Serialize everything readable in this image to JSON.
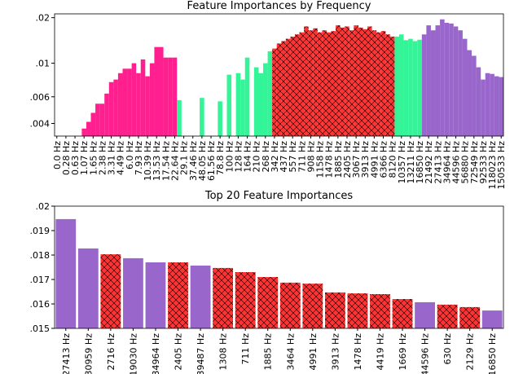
{
  "chart_data": [
    {
      "type": "bar",
      "title": "Feature Importances by Frequency",
      "log_scale": true,
      "categories": [
        "0.0 Hz",
        null,
        "0.28 Hz",
        null,
        "0.63 Hz",
        null,
        "1.07 Hz",
        null,
        "1.65 Hz",
        null,
        "2.38 Hz",
        null,
        "3.31 Hz",
        null,
        "4.49 Hz",
        null,
        "6.0 Hz",
        null,
        "7.93 Hz",
        null,
        "10.39 Hz",
        null,
        "13.53 Hz",
        null,
        "17.54 Hz",
        null,
        "22.64 Hz",
        null,
        "29.1 Hz",
        null,
        "37.46 Hz",
        null,
        "48.05 Hz",
        null,
        "61.56 Hz",
        null,
        "78.8 Hz",
        null,
        "100 Hz",
        null,
        "128 Hz",
        null,
        "164 Hz",
        null,
        "210 Hz",
        null,
        "268 Hz",
        null,
        "342 Hz",
        null,
        "437 Hz",
        null,
        "557 Hz",
        null,
        "711 Hz",
        null,
        "908 Hz",
        null,
        "1158 Hz",
        null,
        "1478 Hz",
        null,
        "1885 Hz",
        null,
        "2405 Hz",
        null,
        "3067 Hz",
        null,
        "3913 Hz",
        null,
        "4991 Hz",
        null,
        "6366 Hz",
        null,
        "8120 Hz",
        null,
        "10357 Hz",
        null,
        "13211 Hz",
        null,
        "16850 Hz",
        null,
        "21492 Hz",
        null,
        "27413 Hz",
        null,
        "34964 Hz",
        null,
        "44596 Hz",
        null,
        "56880 Hz",
        null,
        "72549 Hz",
        null,
        "92533 Hz",
        null,
        "118023 Hz",
        null,
        "150533 Hz"
      ],
      "values": [
        0.003,
        0.003,
        0.003,
        0.003,
        0.003,
        0.003,
        0.0037,
        0.0041,
        0.0047,
        0.0054,
        0.0054,
        0.0063,
        0.0075,
        0.0078,
        0.0086,
        0.0092,
        0.0092,
        0.01,
        0.0086,
        0.0106,
        0.0082,
        0.01,
        0.0128,
        0.0128,
        0.0109,
        0.0109,
        0.0109,
        0.0057,
        0.003,
        0.003,
        0.003,
        0.003,
        0.0059,
        0.003,
        0.003,
        0.003,
        0.0056,
        0.003,
        0.0084,
        0.003,
        0.0086,
        0.0078,
        0.0109,
        0.003,
        0.0094,
        0.0086,
        0.01,
        0.012,
        0.0125,
        0.0135,
        0.014,
        0.0145,
        0.015,
        0.0155,
        0.016,
        0.0175,
        0.0165,
        0.017,
        0.016,
        0.0165,
        0.016,
        0.0163,
        0.0178,
        0.0172,
        0.0175,
        0.0165,
        0.0178,
        0.0172,
        0.0168,
        0.0175,
        0.0165,
        0.016,
        0.0163,
        0.0155,
        0.015,
        0.015,
        0.0155,
        0.0142,
        0.0145,
        0.014,
        0.0143,
        0.0155,
        0.0178,
        0.0165,
        0.0178,
        0.0195,
        0.0185,
        0.0183,
        0.0175,
        0.0165,
        0.0145,
        0.0122,
        0.0112,
        0.0094,
        0.0078,
        0.0086,
        0.0085,
        0.0082,
        0.0081
      ],
      "colors": [
        "#ff1f8e",
        "#ff1f8e",
        "#ff1f8e",
        "#ff1f8e",
        "#ff1f8e",
        "#ff1f8e",
        "#ff1f8e",
        "#ff1f8e",
        "#ff1f8e",
        "#ff1f8e",
        "#ff1f8e",
        "#ff1f8e",
        "#ff1f8e",
        "#ff1f8e",
        "#ff1f8e",
        "#ff1f8e",
        "#ff1f8e",
        "#ff1f8e",
        "#ff1f8e",
        "#ff1f8e",
        "#ff1f8e",
        "#ff1f8e",
        "#ff1f8e",
        "#ff1f8e",
        "#ff1f8e",
        "#ff1f8e",
        "#ff1f8e",
        "#33f598",
        "#33f598",
        "#33f598",
        "#33f598",
        "#33f598",
        "#33f598",
        "#33f598",
        "#33f598",
        "#33f598",
        "#33f598",
        "#33f598",
        "#33f598",
        "#33f598",
        "#33f598",
        "#33f598",
        "#33f598",
        "#33f598",
        "#33f598",
        "#33f598",
        "#33f598",
        "#33f598",
        "#ff3333",
        "#ff3333",
        "#ff3333",
        "#ff3333",
        "#ff3333",
        "#ff3333",
        "#ff3333",
        "#ff3333",
        "#ff3333",
        "#ff3333",
        "#ff3333",
        "#ff3333",
        "#ff3333",
        "#ff3333",
        "#ff3333",
        "#ff3333",
        "#ff3333",
        "#ff3333",
        "#ff3333",
        "#ff3333",
        "#ff3333",
        "#ff3333",
        "#ff3333",
        "#ff3333",
        "#ff3333",
        "#ff3333",
        "#ff3333",
        "#33f598",
        "#33f598",
        "#33f598",
        "#33f598",
        "#33f598",
        "#33f598",
        "#9966cc",
        "#9966cc",
        "#9966cc",
        "#9966cc",
        "#9966cc",
        "#9966cc",
        "#9966cc",
        "#9966cc",
        "#9966cc",
        "#9966cc",
        "#9966cc",
        "#9966cc",
        "#9966cc",
        "#9966cc",
        "#9966cc",
        "#9966cc",
        "#9966cc",
        "#9966cc"
      ],
      "hatched": [
        false,
        false,
        false,
        false,
        false,
        false,
        false,
        false,
        false,
        false,
        false,
        false,
        false,
        false,
        false,
        false,
        false,
        false,
        false,
        false,
        false,
        false,
        false,
        false,
        false,
        false,
        false,
        false,
        false,
        false,
        false,
        false,
        false,
        false,
        false,
        false,
        false,
        false,
        false,
        false,
        false,
        false,
        false,
        false,
        false,
        false,
        false,
        false,
        true,
        true,
        true,
        true,
        true,
        true,
        true,
        true,
        true,
        true,
        true,
        true,
        true,
        true,
        true,
        true,
        true,
        true,
        true,
        true,
        true,
        true,
        true,
        true,
        true,
        true,
        true,
        false,
        false,
        false,
        false,
        false,
        false,
        false,
        false,
        false,
        false,
        false,
        false,
        false,
        false,
        false,
        false,
        false,
        false,
        false,
        false,
        false,
        false,
        false,
        false
      ],
      "ylim": [
        0.0033,
        0.0212
      ],
      "yticks": [
        {
          "value": 0.004,
          "label": ".004"
        },
        {
          "value": 0.006,
          "label": ".006"
        },
        {
          "value": 0.01,
          "label": ".01"
        },
        {
          "value": 0.02,
          "label": ".02"
        }
      ]
    },
    {
      "type": "bar",
      "title": "Top 20 Feature Importances",
      "log_scale": false,
      "categories": [
        "27413 Hz",
        "30959 Hz",
        "2716 Hz",
        "19030 Hz",
        "34964 Hz",
        "2405 Hz",
        "39487 Hz",
        "1308 Hz",
        "711 Hz",
        "1885 Hz",
        "3464 Hz",
        "4991 Hz",
        "3913 Hz",
        "1478 Hz",
        "4419 Hz",
        "1669 Hz",
        "44596 Hz",
        "630 Hz",
        "2129 Hz",
        "16850 Hz"
      ],
      "values": [
        0.01947,
        0.01827,
        0.01803,
        0.01787,
        0.0177,
        0.0177,
        0.01757,
        0.01747,
        0.0173,
        0.0171,
        0.01687,
        0.01683,
        0.01647,
        0.01643,
        0.0164,
        0.0162,
        0.01607,
        0.01597,
        0.01587,
        0.01573
      ],
      "colors": [
        "#9966cc",
        "#9966cc",
        "#ff3333",
        "#9966cc",
        "#9966cc",
        "#ff3333",
        "#9966cc",
        "#ff3333",
        "#ff3333",
        "#ff3333",
        "#ff3333",
        "#ff3333",
        "#ff3333",
        "#ff3333",
        "#ff3333",
        "#ff3333",
        "#9966cc",
        "#ff3333",
        "#ff3333",
        "#9966cc"
      ],
      "hatched": [
        false,
        false,
        true,
        false,
        false,
        true,
        false,
        true,
        true,
        true,
        true,
        true,
        true,
        true,
        true,
        true,
        false,
        true,
        true,
        false
      ],
      "ylim": [
        0.015,
        0.02
      ],
      "yticks": [
        {
          "value": 0.015,
          "label": ".015"
        },
        {
          "value": 0.016,
          "label": ".016"
        },
        {
          "value": 0.017,
          "label": ".017"
        },
        {
          "value": 0.018,
          "label": ".018"
        },
        {
          "value": 0.019,
          "label": ".019"
        },
        {
          "value": 0.02,
          "label": ".02"
        }
      ]
    }
  ]
}
